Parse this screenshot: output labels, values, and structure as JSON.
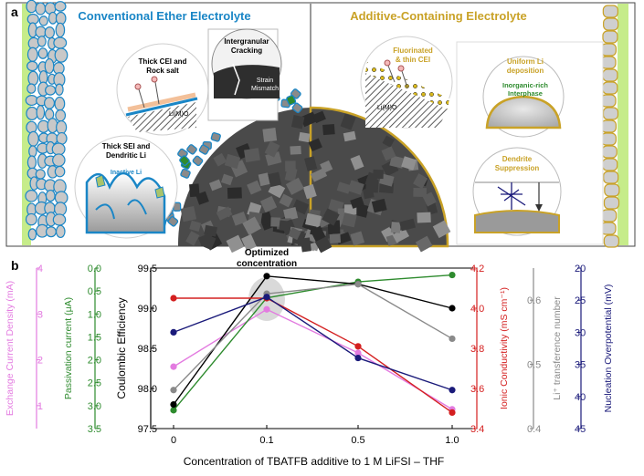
{
  "panel_a": {
    "label": "a",
    "left_title": "Conventional Ether Electrolyte",
    "right_title": "Additive-Containing Electrolyte",
    "callouts": {
      "thick_cei": [
        "Thick CEI and",
        "Rock salt"
      ],
      "intergranular": [
        "Intergranular",
        "Cracking"
      ],
      "strain": [
        "Strain",
        "Mismatch"
      ],
      "thick_sei": [
        "Thick SEI and",
        "Dendritic Li"
      ],
      "inactive_li": "Inactive Li",
      "fluorinated": [
        "Fluorinated",
        "& thin CEI"
      ],
      "li_m_o": "Li(M)O",
      "uniform_li": [
        "Uniform Li",
        "deposition"
      ],
      "inorganic": [
        "Inorganic-rich",
        "Interphase"
      ],
      "dendrite": [
        "Dendrite",
        "Suppression"
      ]
    },
    "colors": {
      "left": "#1a86c6",
      "right": "#c9a227",
      "electrode": "#c6ec8a"
    }
  },
  "panel_b": {
    "label": "b",
    "annotation": [
      "Optimized",
      "concentration"
    ]
  },
  "chart_data": {
    "type": "line",
    "xlabel": "Concentration of TBATFB additive to 1 M LiFSI – THF",
    "categories": [
      "0",
      "0.1",
      "0.5",
      "1.0"
    ],
    "axes": [
      {
        "label": "Exchange Current Density (mA)",
        "color": "#e37be0",
        "ylim": [
          0.5,
          4.0
        ],
        "ticks": [
          "1",
          "2",
          "3",
          "4"
        ]
      },
      {
        "label": "Passivation current (μA)",
        "color": "#2e8b2e",
        "ylim": [
          3.5,
          0.0
        ],
        "inverted": true,
        "ticks": [
          "0.0",
          "0.5",
          "1.0",
          "1.5",
          "2.0",
          "2.5",
          "3.0",
          "3.5"
        ]
      },
      {
        "label": "Coulombic Efficiency",
        "color": "#000000",
        "ylim": [
          97.5,
          99.5
        ],
        "ticks": [
          "97.5",
          "98.0",
          "98.5",
          "99.0",
          "99.5"
        ]
      },
      {
        "label": "Ionic Conductivity (mS cm⁻¹)",
        "color": "#d42020",
        "ylim": [
          3.4,
          4.2
        ],
        "ticks": [
          "3.4",
          "3.6",
          "3.8",
          "4.0",
          "4.2"
        ]
      },
      {
        "label": "Li⁺ transference number",
        "color": "#8a8a8a",
        "ylim": [
          0.4,
          0.65
        ],
        "ticks": [
          "0.4",
          "0.5",
          "0.6"
        ]
      },
      {
        "label": "Nucleation Overpotential (mV)",
        "color": "#1a1a7a",
        "ylim": [
          45,
          20
        ],
        "inverted": true,
        "ticks": [
          "20",
          "25",
          "30",
          "35",
          "40",
          "45"
        ]
      }
    ],
    "series": [
      {
        "axis": 0,
        "color": "#e37be0",
        "values": [
          1.85,
          3.1,
          2.15,
          0.92
        ]
      },
      {
        "axis": 1,
        "color": "#2e8b2e",
        "values": [
          3.1,
          0.65,
          0.3,
          0.15
        ]
      },
      {
        "axis": 2,
        "color": "#000000",
        "values": [
          97.8,
          99.4,
          99.3,
          99.0
        ]
      },
      {
        "axis": 3,
        "color": "#d42020",
        "values": [
          4.05,
          4.05,
          3.81,
          3.48
        ]
      },
      {
        "axis": 4,
        "color": "#8a8a8a",
        "values": [
          0.46,
          0.61,
          0.625,
          0.54
        ]
      },
      {
        "axis": 5,
        "color": "#1a1a7a",
        "values": [
          30,
          24.5,
          34,
          39
        ]
      }
    ]
  }
}
